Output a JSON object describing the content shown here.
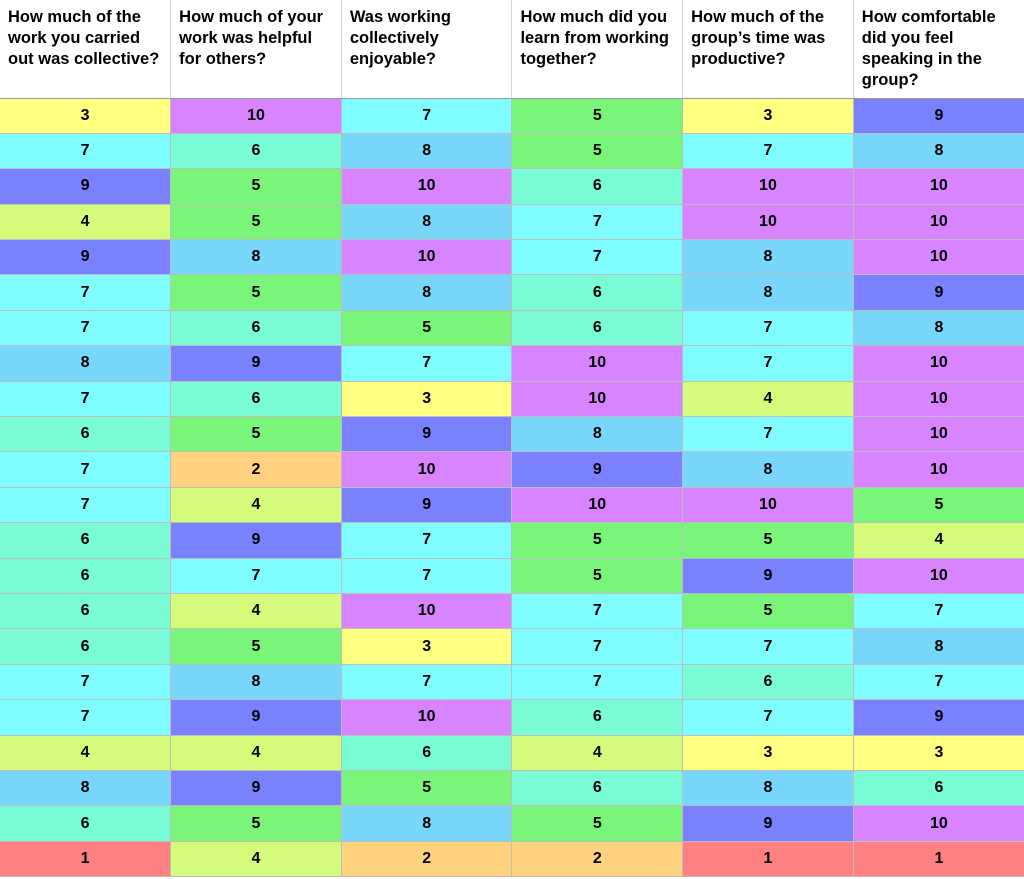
{
  "table": {
    "headers": [
      "How much of the work you carried out was collective?",
      "How much of your work was helpful for others?",
      "Was working collectively enjoyable?",
      "How much did you learn from working together?",
      "How much of the group’s time was productive?",
      "How comfortable did you feel speaking in the group?"
    ],
    "rows": [
      [
        "3",
        "10",
        "7",
        "5",
        "3",
        "9"
      ],
      [
        "7",
        "6",
        "8",
        "5",
        "7",
        "8"
      ],
      [
        "9",
        "5",
        "10",
        "6",
        "10",
        "10"
      ],
      [
        "4",
        "5",
        "8",
        "7",
        "10",
        "10"
      ],
      [
        "9",
        "8",
        "10",
        "7",
        "8",
        "10"
      ],
      [
        "7",
        "5",
        "8",
        "6",
        "8",
        "9"
      ],
      [
        "7",
        "6",
        "5",
        "6",
        "7",
        "8"
      ],
      [
        "8",
        "9",
        "7",
        "10",
        "7",
        "10"
      ],
      [
        "7",
        "6",
        "3",
        "10",
        "4",
        "10"
      ],
      [
        "6",
        "5",
        "9",
        "8",
        "7",
        "10"
      ],
      [
        "7",
        "2",
        "10",
        "9",
        "8",
        "10"
      ],
      [
        "7",
        "4",
        "9",
        "10",
        "10",
        "5"
      ],
      [
        "6",
        "9",
        "7",
        "5",
        "5",
        "4"
      ],
      [
        "6",
        "7",
        "7",
        "5",
        "9",
        "10"
      ],
      [
        "6",
        "4",
        "10",
        "7",
        "5",
        "7"
      ],
      [
        "6",
        "5",
        "3",
        "7",
        "7",
        "8"
      ],
      [
        "7",
        "8",
        "7",
        "7",
        "6",
        "7"
      ],
      [
        "7",
        "9",
        "10",
        "6",
        "7",
        "9"
      ],
      [
        "4",
        "4",
        "6",
        "4",
        "3",
        "3"
      ],
      [
        "8",
        "9",
        "5",
        "6",
        "8",
        "6"
      ],
      [
        "6",
        "5",
        "8",
        "5",
        "9",
        "10"
      ],
      [
        "1",
        "4",
        "2",
        "2",
        "1",
        "1"
      ]
    ]
  },
  "value_colors": {
    "1": "#ff8080",
    "2": "#ffd27f",
    "3": "#ffff80",
    "4": "#d4fb79",
    "5": "#79f679",
    "6": "#79fbd6",
    "7": "#7ffcff",
    "8": "#79d6fb",
    "9": "#7a81ff",
    "10": "#d883ff"
  }
}
